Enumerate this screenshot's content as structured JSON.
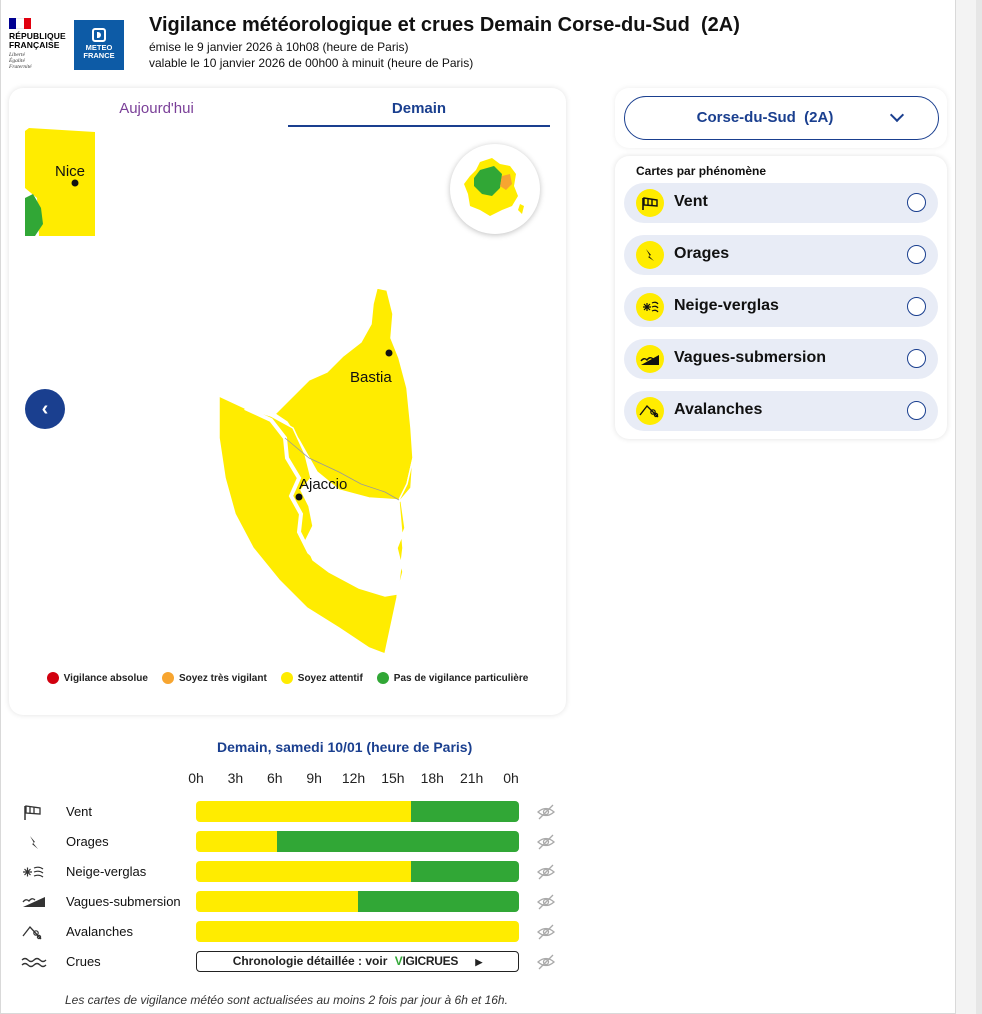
{
  "header": {
    "republique_lines": [
      "RÉPUBLIQUE",
      "FRANÇAISE"
    ],
    "republique_motto": [
      "Liberté",
      "Égalité",
      "Fraternité"
    ],
    "meteo_logo_lines": [
      "METEO",
      "FRANCE"
    ],
    "title": "Vigilance météorologique et crues Demain Corse-du-Sud  (2A)",
    "emitted": "émise le 9 janvier 2026 à 10h08 (heure de Paris)",
    "valid": "valable le 10 janvier 2026 de 00h00 à minuit (heure de Paris)"
  },
  "tabs": {
    "today": "Aujourd'hui",
    "tomorrow": "Demain",
    "active": "tomorrow"
  },
  "map": {
    "cities": {
      "nice": "Nice",
      "bastia": "Bastia",
      "ajaccio": "Ajaccio"
    },
    "colors": {
      "yellow": "#ffec00",
      "green": "#31a736",
      "orange": "#f7a530",
      "red": "#d1000f"
    }
  },
  "legend": [
    {
      "label": "Vigilance absolue",
      "color": "#d1000f"
    },
    {
      "label": "Soyez très vigilant",
      "color": "#f7a530"
    },
    {
      "label": "Soyez attentif",
      "color": "#ffec00"
    },
    {
      "label": "Pas de vigilance particulière",
      "color": "#31a736"
    }
  ],
  "department_select": {
    "value": "Corse-du-Sud  (2A)"
  },
  "phenomena": {
    "title": "Cartes par phénomène",
    "items": [
      {
        "label": "Vent",
        "icon": "wind-icon"
      },
      {
        "label": "Orages",
        "icon": "lightning-icon"
      },
      {
        "label": "Neige-verglas",
        "icon": "snow-ice-icon"
      },
      {
        "label": "Vagues-submersion",
        "icon": "waves-icon"
      },
      {
        "label": "Avalanches",
        "icon": "avalanche-icon"
      }
    ]
  },
  "timeline": {
    "title": "Demain, samedi 10/01 (heure de Paris)",
    "hours": [
      "0h",
      "3h",
      "6h",
      "9h",
      "12h",
      "15h",
      "18h",
      "21h",
      "0h"
    ],
    "rows": [
      {
        "label": "Vent",
        "icon": "wind-icon",
        "yellow_until_hour": 16
      },
      {
        "label": "Orages",
        "icon": "lightning-icon",
        "yellow_until_hour": 6
      },
      {
        "label": "Neige-verglas",
        "icon": "snow-ice-icon",
        "yellow_until_hour": 16
      },
      {
        "label": "Vagues-submersion",
        "icon": "waves-icon",
        "yellow_until_hour": 12
      },
      {
        "label": "Avalanches",
        "icon": "avalanche-icon",
        "yellow_until_hour": 24
      }
    ],
    "crues": {
      "label": "Crues",
      "icon": "flood-icon",
      "button": "Chronologie détaillée : voir",
      "brand_v": "V",
      "brand_rest": "IGICRUES"
    }
  },
  "footer": "Les cartes de vigilance météo sont actualisées au moins 2 fois par jour à 6h et 16h."
}
